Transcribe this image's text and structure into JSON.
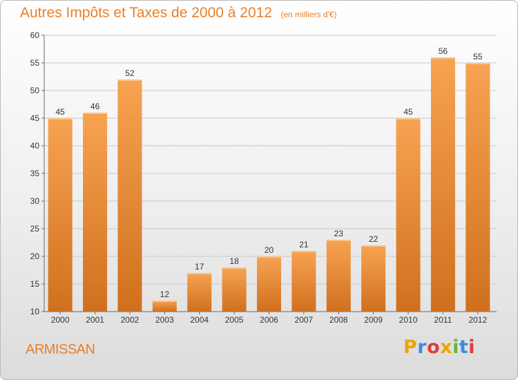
{
  "header": {
    "title": "Autres Impôts et Taxes de 2000 à 2012",
    "subtitle": "(en milliers d'€)"
  },
  "footer": {
    "commune": "ARMISSAN",
    "logo_letters": [
      "P",
      "r",
      "o",
      "x",
      "i",
      "t",
      "i"
    ],
    "logo_colors": [
      "#f0a400",
      "#3a8ed8",
      "#e23b3b",
      "#f0a400",
      "#62b73a",
      "#3a8ed8",
      "#e23b3b"
    ]
  },
  "colors": {
    "accent": "#e8802a",
    "bar_top": "#f7a352",
    "bar_bottom": "#d0701e",
    "grid": "#c8c8c8",
    "axis": "#666666"
  },
  "chart_data": {
    "type": "bar",
    "categories": [
      "2000",
      "2001",
      "2002",
      "2003",
      "2004",
      "2005",
      "2006",
      "2007",
      "2008",
      "2009",
      "2010",
      "2011",
      "2012"
    ],
    "values": [
      45,
      46,
      52,
      12,
      17,
      18,
      20,
      21,
      23,
      22,
      45,
      56,
      55
    ],
    "data_labels": [
      "45",
      "46",
      "52",
      "12",
      "17",
      "18",
      "20",
      "21",
      "23",
      "22",
      "45",
      "56",
      "55"
    ],
    "title": "Autres Impôts et Taxes de 2000 à 2012",
    "subtitle": "(en milliers d'€)",
    "xlabel": "",
    "ylabel": "",
    "ylim": [
      10,
      60
    ],
    "yticks": [
      10,
      15,
      20,
      25,
      30,
      35,
      40,
      45,
      50,
      55,
      60
    ],
    "grid": true,
    "legend": "none"
  }
}
